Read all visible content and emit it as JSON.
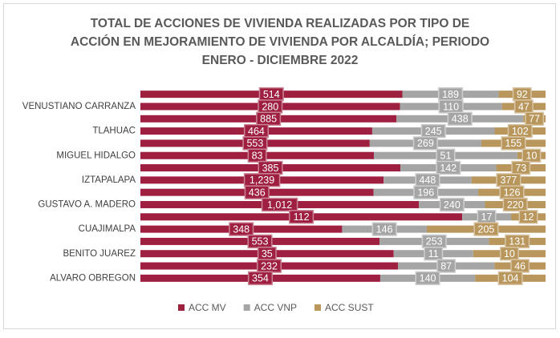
{
  "chart_data": {
    "type": "stacked_bar_100",
    "title": [
      "TOTAL DE ACCIONES DE VIVIENDA REALIZADAS POR TIPO DE",
      "ACCIÓN EN MEJORAMIENTO DE VIVIENDA POR ALCALDÍA; PERIODO",
      "ENERO - DICIEMBRE 2022"
    ],
    "categories": [
      null,
      "VENUSTIANO CARRANZA",
      null,
      "TLAHUAC",
      null,
      "MIGUEL HIDALGO",
      null,
      "IZTAPALAPA",
      null,
      "GUSTAVO A. MADERO",
      null,
      "CUAJIMALPA",
      null,
      "BENITO JUAREZ",
      null,
      "ALVARO OBREGON"
    ],
    "series": [
      {
        "name": "ACC MV",
        "color": "#9e1f3f",
        "values": [
          514,
          280,
          885,
          464,
          553,
          83,
          385,
          1239,
          436,
          1012,
          112,
          348,
          553,
          35,
          232,
          354
        ],
        "value_labels": [
          "514",
          "280",
          "885",
          "464",
          "553",
          "83",
          "385",
          "1,239",
          "436",
          "1,012",
          "112",
          "348",
          "553",
          "35",
          "232",
          "354"
        ]
      },
      {
        "name": "ACC VNP",
        "color": "#a5a5a5",
        "values": [
          189,
          110,
          438,
          245,
          269,
          51,
          142,
          448,
          196,
          240,
          17,
          146,
          253,
          11,
          87,
          140
        ]
      },
      {
        "name": "ACC SUST",
        "color": "#b8965c",
        "values": [
          92,
          47,
          77,
          102,
          155,
          10,
          73,
          377,
          126,
          220,
          12,
          205,
          131,
          10,
          46,
          104
        ]
      }
    ],
    "legend": "bottom"
  }
}
